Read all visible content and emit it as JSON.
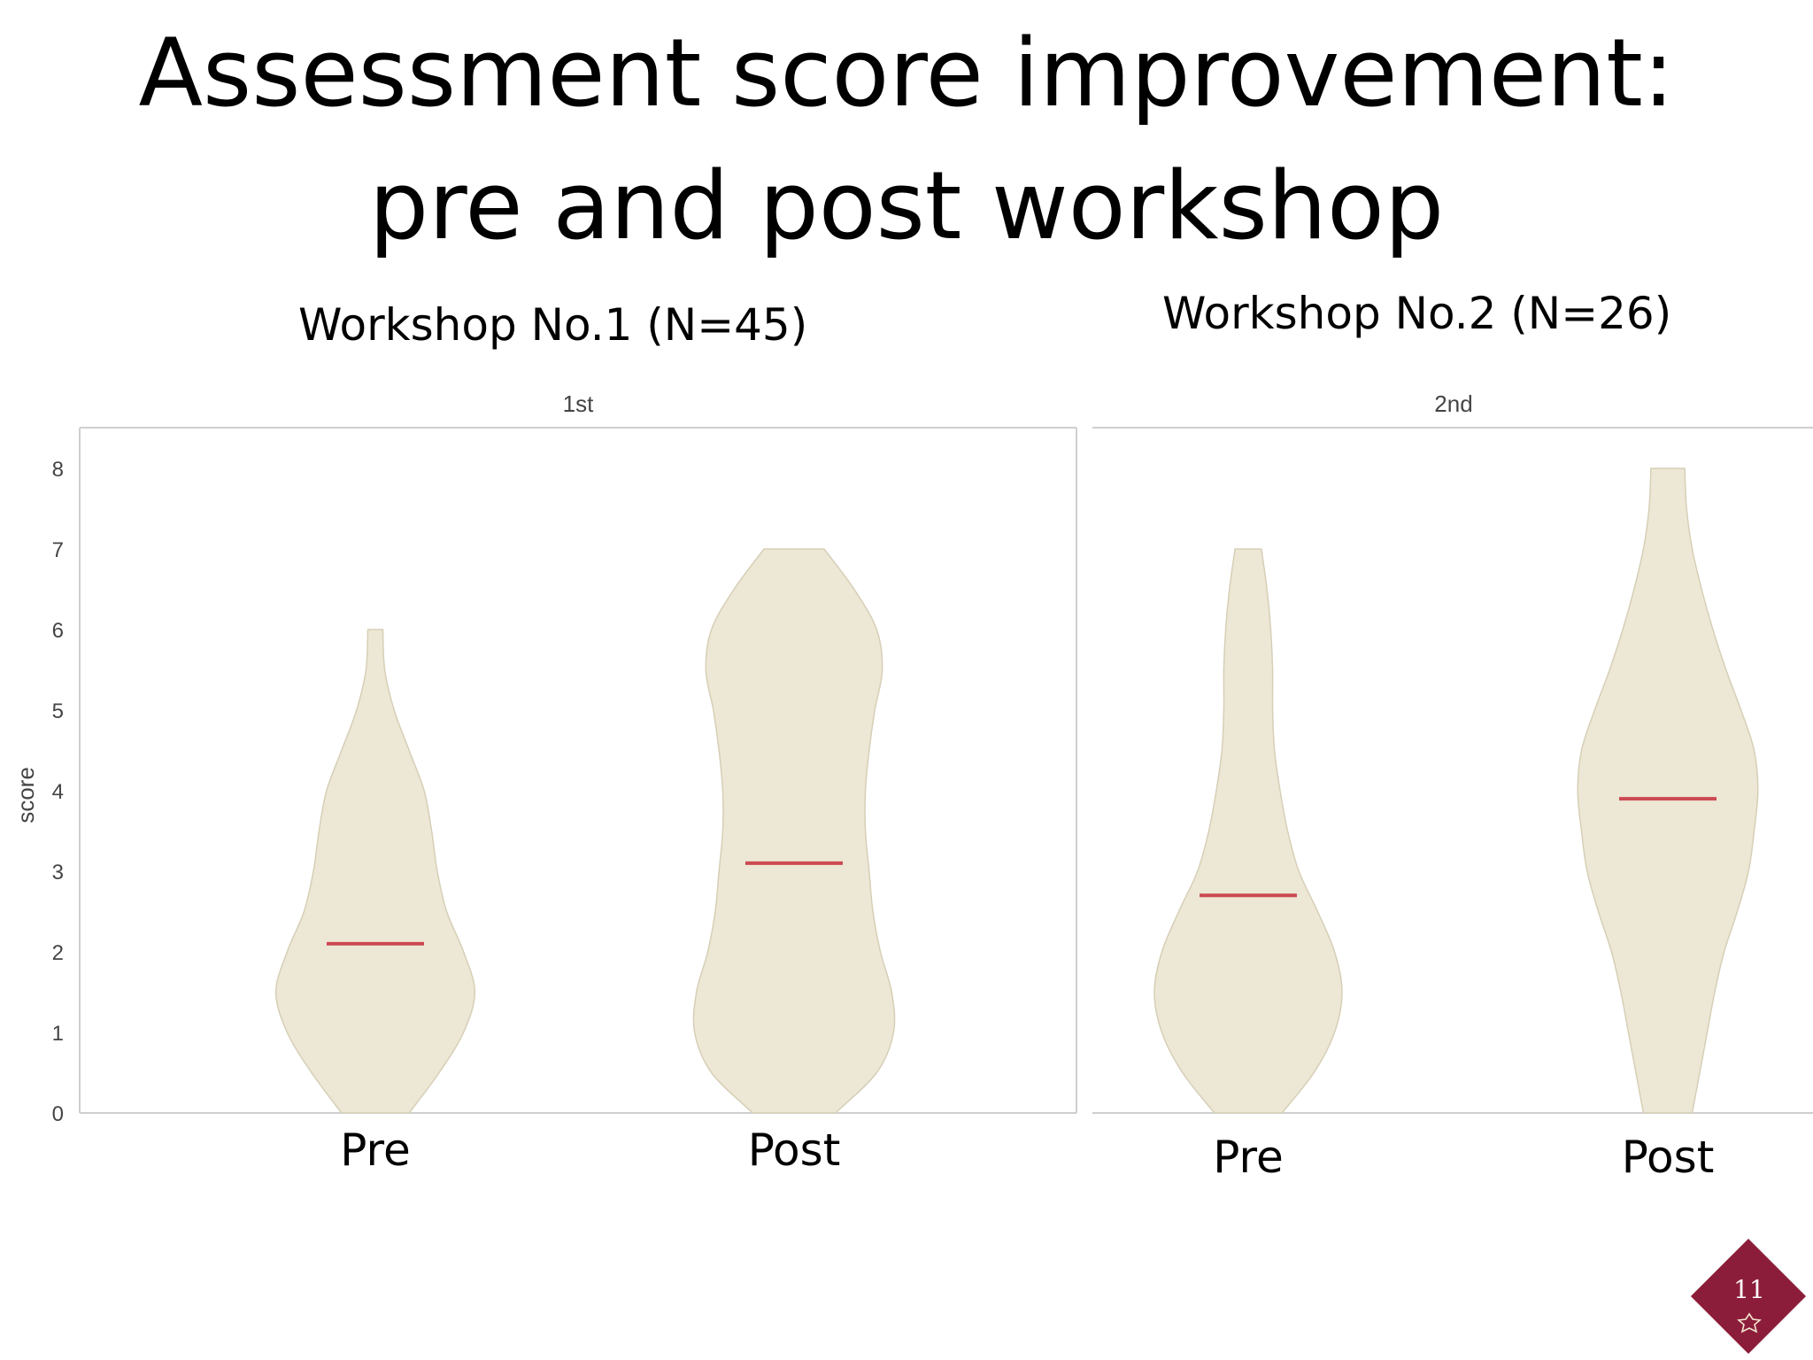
{
  "title": {
    "line1": "Assessment score improvement:",
    "line2": "pre and post workshop"
  },
  "workshops": [
    {
      "label": "Workshop No.1 (N=45)"
    },
    {
      "label": "Workshop No.2 (N=26)"
    }
  ],
  "page_number": "11",
  "colors": {
    "violin_fill": "#ede7d5",
    "violin_edge": "#d6cfb7",
    "mean_line": "#cc4a52",
    "frame": "#cfcfcf",
    "badge": "#8c1d3a"
  },
  "chart_data": [
    {
      "type": "violin",
      "title": "1st",
      "ylabel": "score",
      "ylim": [
        0,
        8
      ],
      "yticks": [
        "0",
        "1",
        "2",
        "3",
        "4",
        "5",
        "6",
        "7",
        "8"
      ],
      "categories": [
        "Pre",
        "Post"
      ],
      "series": [
        {
          "category": "Pre",
          "mean": 2.1,
          "range": [
            0,
            6
          ],
          "density": [
            [
              0,
              0.18
            ],
            [
              0.5,
              0.34
            ],
            [
              1,
              0.47
            ],
            [
              1.5,
              0.53
            ],
            [
              2,
              0.47
            ],
            [
              2.5,
              0.38
            ],
            [
              3,
              0.33
            ],
            [
              3.5,
              0.3
            ],
            [
              4,
              0.26
            ],
            [
              4.5,
              0.18
            ],
            [
              5,
              0.1
            ],
            [
              5.5,
              0.05
            ],
            [
              6,
              0.04
            ]
          ]
        },
        {
          "category": "Post",
          "mean": 3.1,
          "range": [
            0,
            7
          ],
          "density": [
            [
              0,
              0.22
            ],
            [
              0.5,
              0.44
            ],
            [
              1,
              0.53
            ],
            [
              1.5,
              0.52
            ],
            [
              2,
              0.46
            ],
            [
              2.5,
              0.42
            ],
            [
              3,
              0.4
            ],
            [
              3.5,
              0.38
            ],
            [
              4,
              0.38
            ],
            [
              4.5,
              0.4
            ],
            [
              5,
              0.43
            ],
            [
              5.5,
              0.47
            ],
            [
              6,
              0.44
            ],
            [
              6.5,
              0.32
            ],
            [
              7,
              0.16
            ]
          ]
        }
      ]
    },
    {
      "type": "violin",
      "title": "2nd",
      "ylabel": "",
      "ylim": [
        0,
        8
      ],
      "categories": [
        "Pre",
        "Post"
      ],
      "series": [
        {
          "category": "Pre",
          "mean": 2.7,
          "range": [
            0,
            7
          ],
          "density": [
            [
              0,
              0.18
            ],
            [
              0.5,
              0.35
            ],
            [
              1,
              0.46
            ],
            [
              1.5,
              0.5
            ],
            [
              2,
              0.46
            ],
            [
              2.5,
              0.37
            ],
            [
              3,
              0.27
            ],
            [
              3.5,
              0.21
            ],
            [
              4,
              0.17
            ],
            [
              4.5,
              0.14
            ],
            [
              5,
              0.13
            ],
            [
              5.5,
              0.13
            ],
            [
              6,
              0.12
            ],
            [
              6.5,
              0.1
            ],
            [
              7,
              0.07
            ]
          ]
        },
        {
          "category": "Post",
          "mean": 3.9,
          "range": [
            0,
            8
          ],
          "density": [
            [
              0,
              0.13
            ],
            [
              0.5,
              0.17
            ],
            [
              1,
              0.21
            ],
            [
              1.5,
              0.25
            ],
            [
              2,
              0.3
            ],
            [
              2.5,
              0.37
            ],
            [
              3,
              0.43
            ],
            [
              3.5,
              0.46
            ],
            [
              4,
              0.48
            ],
            [
              4.5,
              0.46
            ],
            [
              5,
              0.39
            ],
            [
              5.5,
              0.31
            ],
            [
              6,
              0.24
            ],
            [
              6.5,
              0.18
            ],
            [
              7,
              0.13
            ],
            [
              7.5,
              0.1
            ],
            [
              8,
              0.09
            ]
          ]
        }
      ]
    }
  ]
}
